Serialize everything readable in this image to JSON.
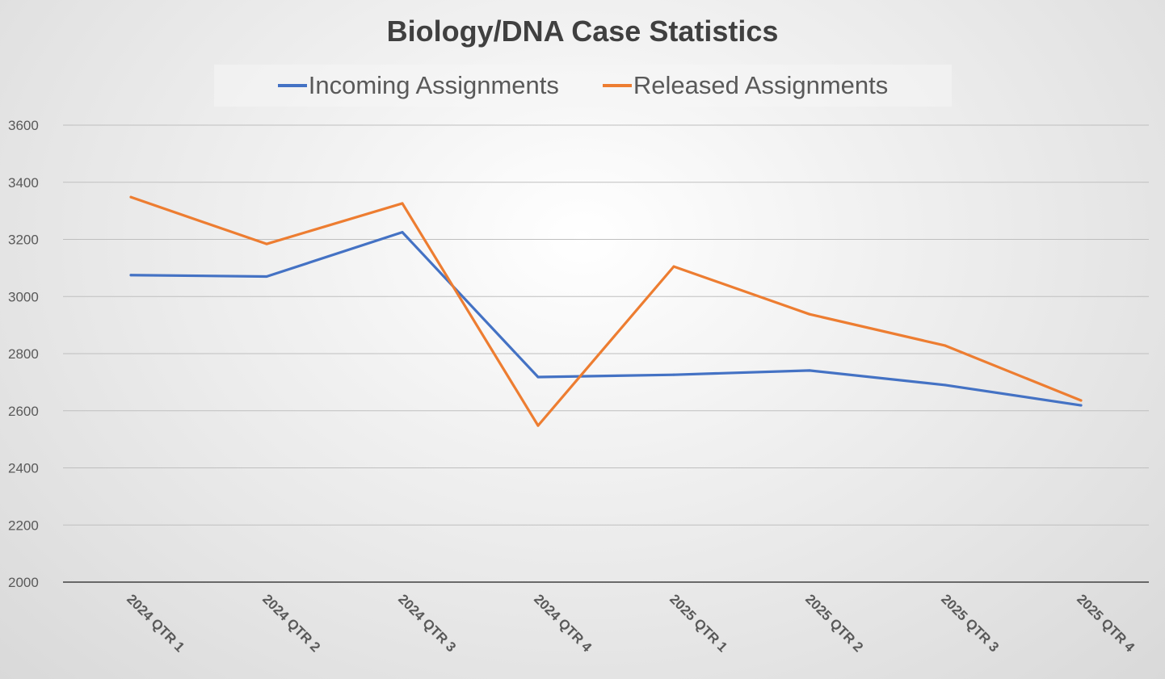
{
  "chart_data": {
    "type": "line",
    "title": "Biology/DNA Case Statistics",
    "xlabel": "",
    "ylabel": "",
    "categories": [
      "2024 QTR 1",
      "2024 QTR 2",
      "2024 QTR 3",
      "2024 QTR 4",
      "2025 QTR 1",
      "2025 QTR 2",
      "2025 QTR 3",
      "2025 QTR 4"
    ],
    "ylim": [
      2000,
      3600
    ],
    "yticks": [
      2000,
      2200,
      2400,
      2600,
      2800,
      3000,
      3200,
      3400,
      3600
    ],
    "grid": true,
    "legend_position": "top",
    "series": [
      {
        "name": "Incoming Assignments",
        "color": "#4472C4",
        "values": [
          3075,
          3070,
          3225,
          2718,
          2726,
          2741,
          2690,
          2619
        ]
      },
      {
        "name": "Released Assignments",
        "color": "#ED7D31",
        "values": [
          3348,
          3184,
          3326,
          2548,
          3105,
          2938,
          2828,
          2636
        ]
      }
    ]
  }
}
